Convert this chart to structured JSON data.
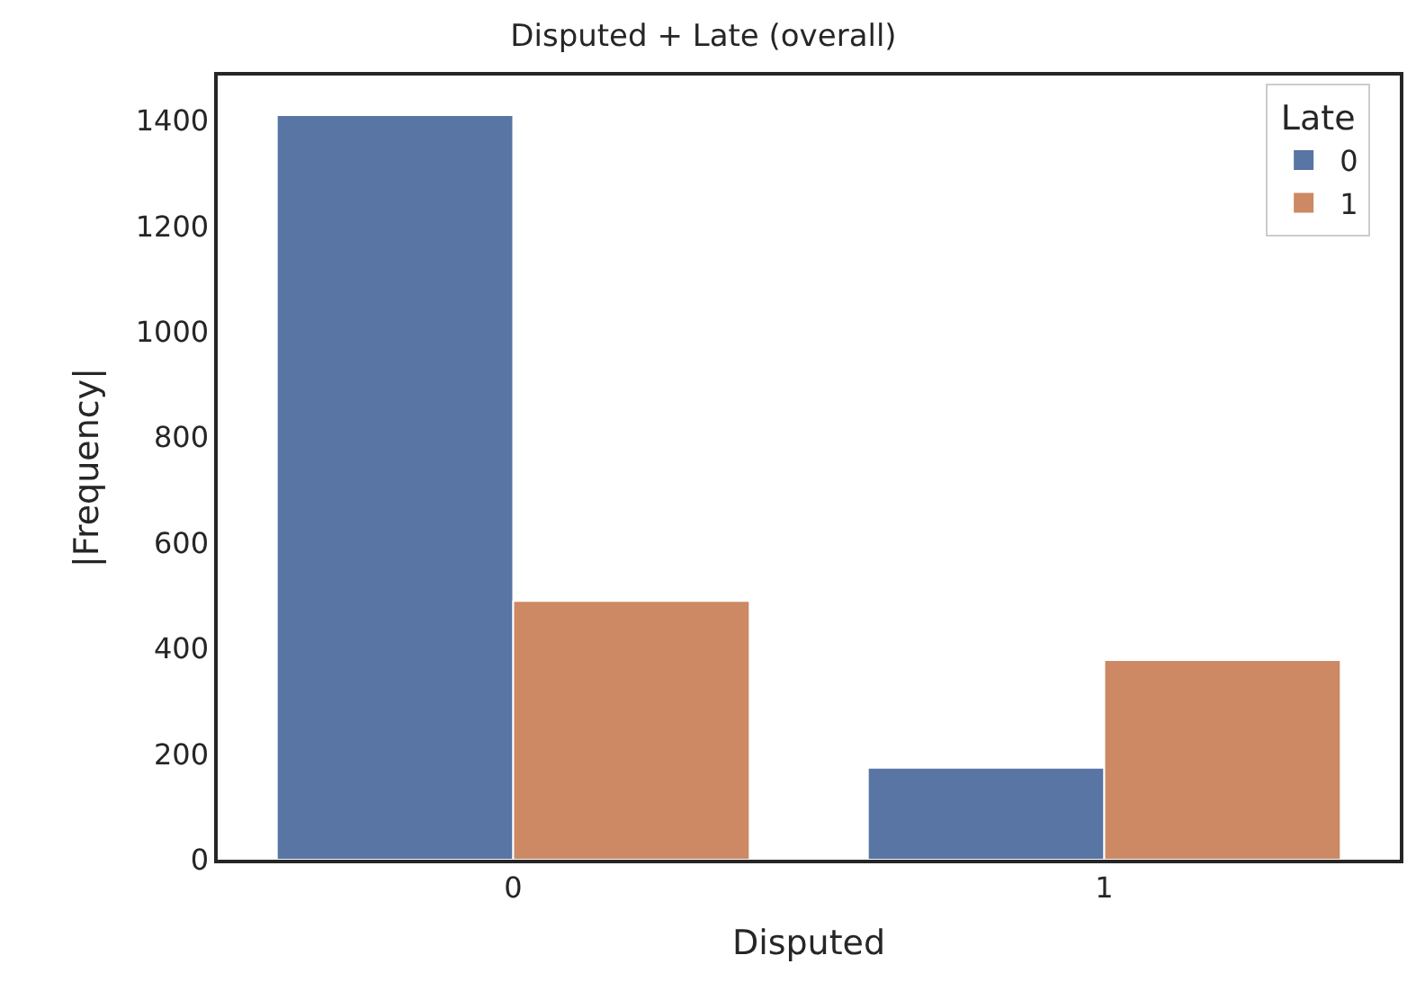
{
  "chart_data": {
    "type": "bar",
    "title": "Disputed + Late (overall)",
    "xlabel": "Disputed",
    "ylabel": "|Frequency|",
    "legend_title": "Late",
    "categories": [
      "0",
      "1"
    ],
    "series": [
      {
        "name": "0",
        "color": "#5875a4",
        "values": [
          1410,
          174
        ]
      },
      {
        "name": "1",
        "color": "#cc8963",
        "values": [
          490,
          378
        ]
      }
    ],
    "ylim": [
      0,
      1485
    ],
    "yticks": [
      0,
      200,
      400,
      600,
      800,
      1000,
      1200,
      1400
    ],
    "legend": "top right"
  }
}
